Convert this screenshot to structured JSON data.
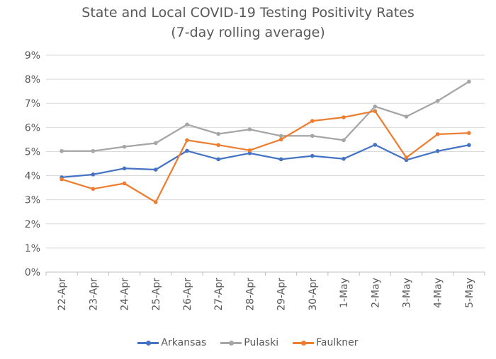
{
  "chart_data": {
    "type": "line",
    "title": "State and Local COVID-19 Testing Positivity Rates",
    "subtitle": "(7-day rolling average)",
    "xlabel": "",
    "ylabel": "",
    "ylim": [
      0,
      9
    ],
    "y_ticks": [
      "0%",
      "1%",
      "2%",
      "3%",
      "4%",
      "5%",
      "6%",
      "7%",
      "8%",
      "9%"
    ],
    "grid": true,
    "legend_position": "bottom",
    "categories": [
      "22-Apr",
      "23-Apr",
      "24-Apr",
      "25-Apr",
      "26-Apr",
      "27-Apr",
      "28-Apr",
      "29-Apr",
      "30-Apr",
      "1-May",
      "2-May",
      "3-May",
      "4-May",
      "5-May"
    ],
    "series": [
      {
        "name": "Arkansas",
        "color": "#4472C4",
        "values": [
          3.93,
          4.05,
          4.3,
          4.25,
          5.03,
          4.68,
          4.93,
          4.68,
          4.82,
          4.7,
          5.28,
          4.65,
          5.02,
          5.27
        ]
      },
      {
        "name": "Pulaski",
        "color": "#A5A5A5",
        "values": [
          5.02,
          5.02,
          5.2,
          5.35,
          6.12,
          5.73,
          5.92,
          5.65,
          5.65,
          5.47,
          6.87,
          6.45,
          7.1,
          7.9
        ]
      },
      {
        "name": "Faulkner",
        "color": "#ED7D31",
        "values": [
          3.85,
          3.45,
          3.68,
          2.9,
          5.47,
          5.27,
          5.05,
          5.5,
          6.27,
          6.42,
          6.68,
          4.75,
          5.72,
          5.77
        ]
      }
    ]
  }
}
